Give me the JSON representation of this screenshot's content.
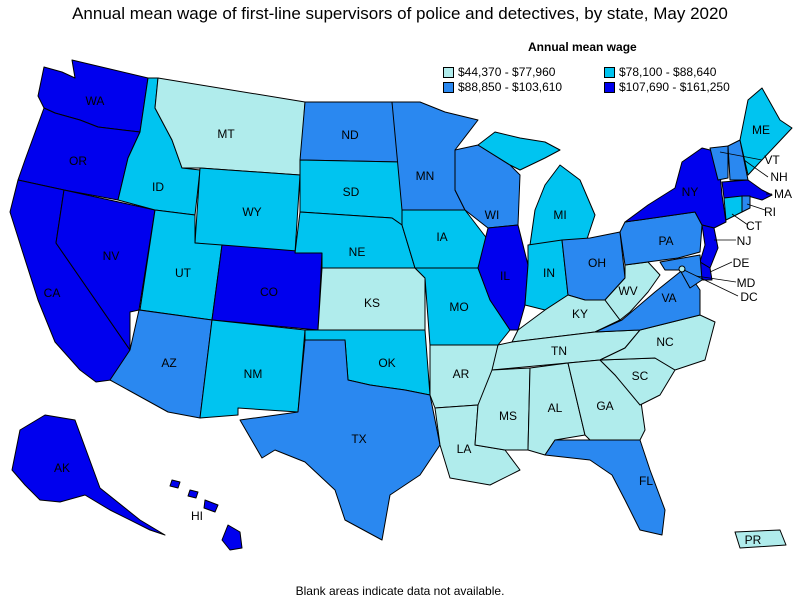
{
  "title": "Annual mean wage of first-line supervisors of police and detectives, by state, May 2020",
  "legend": {
    "title": "Annual mean wage",
    "bins": [
      {
        "label": "$44,370 - $77,960",
        "color": "#b0ecec"
      },
      {
        "label": "$78,100 - $88,640",
        "color": "#00c4f0"
      },
      {
        "label": "$88,850 - $103,610",
        "color": "#2a88f0"
      },
      {
        "label": "$107,690 - $161,250",
        "color": "#0000ee"
      }
    ]
  },
  "note": "Blank areas indicate data not available.",
  "states": {
    "WA": {
      "label": "WA",
      "bin": 3
    },
    "OR": {
      "label": "OR",
      "bin": 3
    },
    "CA": {
      "label": "CA",
      "bin": 3
    },
    "NV": {
      "label": "NV",
      "bin": 3
    },
    "ID": {
      "label": "ID",
      "bin": 1
    },
    "MT": {
      "label": "MT",
      "bin": 0
    },
    "WY": {
      "label": "WY",
      "bin": 1
    },
    "UT": {
      "label": "UT",
      "bin": 1
    },
    "AZ": {
      "label": "AZ",
      "bin": 2
    },
    "CO": {
      "label": "CO",
      "bin": 3
    },
    "NM": {
      "label": "NM",
      "bin": 1
    },
    "ND": {
      "label": "ND",
      "bin": 2
    },
    "SD": {
      "label": "SD",
      "bin": 1
    },
    "NE": {
      "label": "NE",
      "bin": 1
    },
    "KS": {
      "label": "KS",
      "bin": 0
    },
    "OK": {
      "label": "OK",
      "bin": 1
    },
    "TX": {
      "label": "TX",
      "bin": 2
    },
    "MN": {
      "label": "MN",
      "bin": 2
    },
    "IA": {
      "label": "IA",
      "bin": 1
    },
    "MO": {
      "label": "MO",
      "bin": 1
    },
    "AR": {
      "label": "AR",
      "bin": 0
    },
    "LA": {
      "label": "LA",
      "bin": 0
    },
    "WI": {
      "label": "WI",
      "bin": 2
    },
    "IL": {
      "label": "IL",
      "bin": 3
    },
    "MI": {
      "label": "MI",
      "bin": 1
    },
    "IN": {
      "label": "IN",
      "bin": 1
    },
    "OH": {
      "label": "OH",
      "bin": 2
    },
    "KY": {
      "label": "KY",
      "bin": 0
    },
    "TN": {
      "label": "TN",
      "bin": 0
    },
    "MS": {
      "label": "MS",
      "bin": 0
    },
    "AL": {
      "label": "AL",
      "bin": 0
    },
    "GA": {
      "label": "GA",
      "bin": 0
    },
    "FL": {
      "label": "FL",
      "bin": 2
    },
    "SC": {
      "label": "SC",
      "bin": 0
    },
    "NC": {
      "label": "NC",
      "bin": 0
    },
    "VA": {
      "label": "VA",
      "bin": 2
    },
    "WV": {
      "label": "WV",
      "bin": 0
    },
    "PA": {
      "label": "PA",
      "bin": 2
    },
    "NY": {
      "label": "NY",
      "bin": 3
    },
    "VT": {
      "label": "VT",
      "bin": 2
    },
    "NH": {
      "label": "NH",
      "bin": 2
    },
    "ME": {
      "label": "ME",
      "bin": 1
    },
    "MA": {
      "label": "MA",
      "bin": 3
    },
    "RI": {
      "label": "RI",
      "bin": 2
    },
    "CT": {
      "label": "CT",
      "bin": 1
    },
    "NJ": {
      "label": "NJ",
      "bin": 3
    },
    "DE": {
      "label": "DE",
      "bin": 3
    },
    "MD": {
      "label": "MD",
      "bin": 2
    },
    "DC": {
      "label": "DC",
      "bin": 0
    },
    "AK": {
      "label": "AK",
      "bin": 3
    },
    "HI": {
      "label": "HI",
      "bin": 3
    },
    "PR": {
      "label": "PR",
      "bin": 0
    }
  }
}
